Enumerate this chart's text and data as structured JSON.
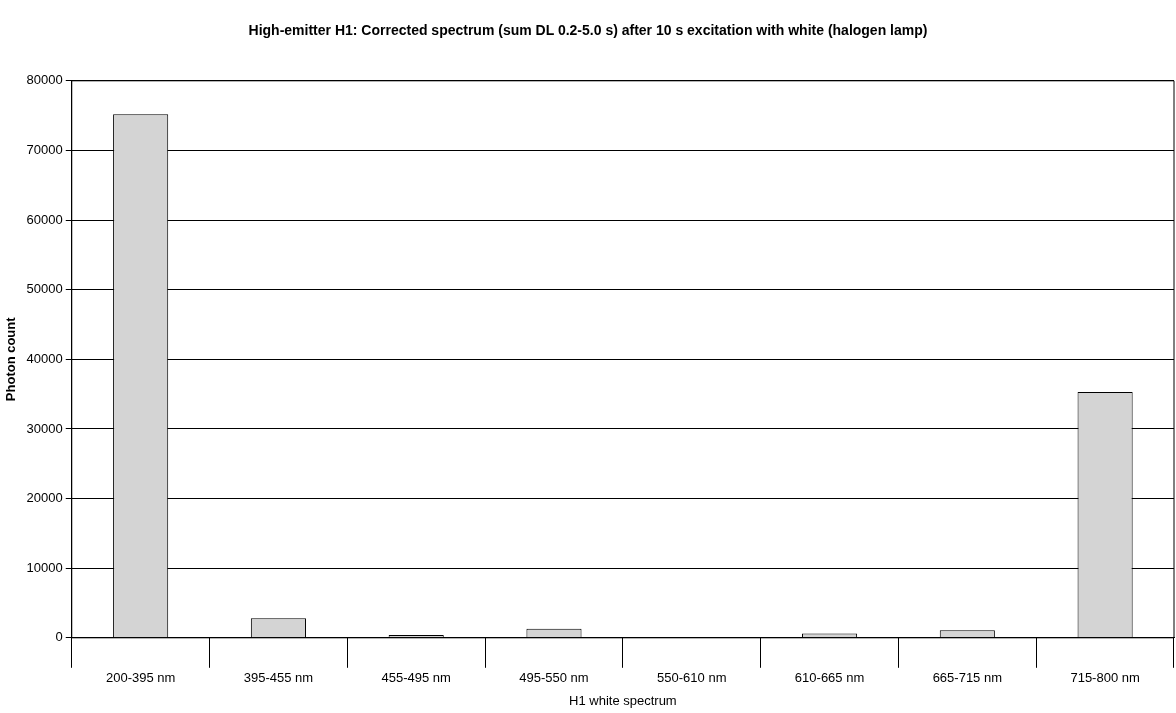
{
  "chart_data": {
    "type": "bar",
    "title": "High-emitter H1: Corrected spectrum (sum DL 0.2-5.0 s) after 10 s excitation with white (halogen lamp)",
    "xlabel": "H1 white spectrum",
    "ylabel": "Photon count",
    "categories": [
      "200-395 nm",
      "395-455 nm",
      "455-495 nm",
      "495-550 nm",
      "550-610 nm",
      "610-665 nm",
      "665-715 nm",
      "715-800 nm"
    ],
    "values": [
      75200,
      2800,
      400,
      1300,
      0,
      600,
      1100,
      35300
    ],
    "color": "#d4d4d4",
    "ylim": [
      0,
      80000
    ],
    "yticks": [
      0,
      10000,
      20000,
      30000,
      40000,
      50000,
      60000,
      70000,
      80000
    ],
    "grid": "y",
    "legend": false
  }
}
